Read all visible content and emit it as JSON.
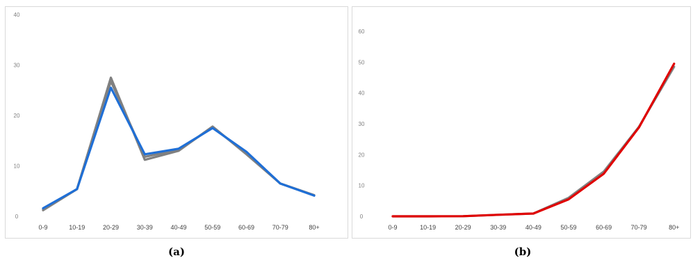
{
  "captions": {
    "a": "(a)",
    "b": "(b)"
  },
  "chart_data": [
    {
      "type": "line",
      "panel": "(a)",
      "categories": [
        "0-9",
        "10-19",
        "20-29",
        "30-39",
        "40-49",
        "50-59",
        "60-69",
        "70-79",
        "80+"
      ],
      "ylim": [
        0,
        40
      ],
      "yticks": [
        0,
        10,
        20,
        30,
        40
      ],
      "grid": false,
      "series": [
        {
          "color": "#808080",
          "values": [
            1.2,
            5.4,
            27.5,
            11.2,
            13.0,
            17.8,
            12.3,
            6.5,
            4.2
          ]
        },
        {
          "color": "#808080",
          "values": [
            1.4,
            5.4,
            26.8,
            11.8,
            13.2,
            17.6,
            12.6,
            6.5,
            4.2
          ]
        },
        {
          "color": "#1f6fd6",
          "values": [
            1.6,
            5.4,
            25.5,
            12.3,
            13.4,
            17.5,
            12.8,
            6.5,
            4.1
          ]
        }
      ]
    },
    {
      "type": "line",
      "panel": "(b)",
      "categories": [
        "0-9",
        "10-19",
        "20-29",
        "30-39",
        "40-49",
        "50-59",
        "60-69",
        "70-79",
        "80+"
      ],
      "ylim": [
        0,
        60
      ],
      "yticks": [
        0,
        10,
        20,
        30,
        40,
        50,
        60
      ],
      "grid": false,
      "series": [
        {
          "color": "#808080",
          "values": [
            0,
            0,
            0.05,
            0.5,
            0.9,
            6.0,
            14.5,
            29.0,
            48.5
          ]
        },
        {
          "color": "#e00000",
          "values": [
            0,
            0,
            0.05,
            0.5,
            0.9,
            5.5,
            13.8,
            28.8,
            49.5
          ]
        }
      ]
    }
  ]
}
